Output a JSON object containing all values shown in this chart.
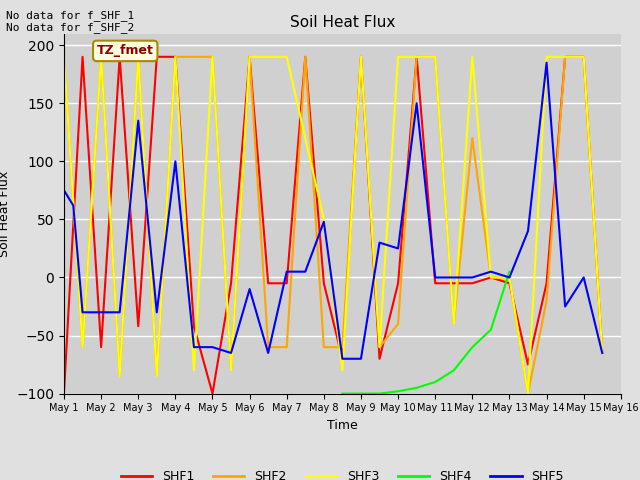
{
  "title": "Soil Heat Flux",
  "ylabel": "Soil Heat Flux",
  "xlabel": "Time",
  "annotation_text": "No data for f_SHF_1\nNo data for f_SHF_2",
  "legend_box_text": "TZ_fmet",
  "ylim": [
    -100,
    210
  ],
  "background_color": "#e0e0e0",
  "plot_bg_color": "#d0d0d0",
  "series": {
    "SHF1": {
      "color": "red",
      "x": [
        1.0,
        1.5,
        2.0,
        2.5,
        3.0,
        3.5,
        4.0,
        4.5,
        5.0,
        5.5,
        6.0,
        6.5,
        7.0,
        7.5,
        8.0,
        8.5,
        9.0,
        9.5,
        10.0,
        10.5,
        11.0,
        11.5,
        12.0,
        12.5,
        13.0,
        13.5,
        14.0,
        14.5,
        15.0,
        15.5
      ],
      "y": [
        -99,
        190,
        -60,
        190,
        -42,
        190,
        190,
        -42,
        -100,
        -5,
        190,
        -5,
        -5,
        190,
        -5,
        -70,
        190,
        -70,
        -5,
        190,
        -5,
        -5,
        -5,
        0,
        -5,
        -75,
        -5,
        190,
        190,
        -65
      ]
    },
    "SHF2": {
      "color": "orange",
      "x": [
        1.0,
        1.5,
        2.0,
        2.5,
        3.0,
        3.5,
        4.0,
        4.5,
        5.0,
        5.5,
        6.0,
        6.5,
        7.0,
        7.5,
        8.0,
        8.5,
        9.0,
        9.5,
        10.0,
        10.5,
        11.0,
        11.5,
        12.0,
        12.5,
        13.0,
        13.5,
        14.0,
        14.5,
        15.0,
        15.5
      ],
      "y": [
        190,
        -60,
        190,
        -85,
        190,
        -85,
        190,
        190,
        190,
        -80,
        190,
        -60,
        -60,
        190,
        -60,
        -60,
        190,
        -60,
        -40,
        190,
        190,
        -40,
        120,
        0,
        0,
        -100,
        -20,
        190,
        190,
        -65
      ]
    },
    "SHF3": {
      "color": "yellow",
      "x": [
        1.0,
        1.5,
        2.0,
        2.5,
        3.0,
        3.5,
        4.0,
        4.5,
        5.0,
        5.5,
        6.0,
        6.5,
        7.0,
        7.5,
        8.0,
        8.5,
        9.0,
        9.5,
        10.0,
        10.5,
        11.0,
        11.5,
        12.0,
        12.5,
        13.0,
        13.5,
        14.0,
        14.5,
        15.0,
        15.5
      ],
      "y": [
        190,
        -60,
        190,
        -85,
        190,
        -85,
        190,
        -80,
        190,
        -80,
        190,
        190,
        190,
        120,
        50,
        -80,
        190,
        -60,
        190,
        190,
        190,
        -40,
        190,
        0,
        0,
        -100,
        190,
        190,
        190,
        -65
      ]
    },
    "SHF4": {
      "color": "lime",
      "x": [
        8.5,
        9.0,
        9.5,
        10.0,
        10.5,
        11.0,
        11.5,
        12.0,
        12.5,
        13.0
      ],
      "y": [
        -100,
        -100,
        -100,
        -98,
        -95,
        -90,
        -80,
        -60,
        -45,
        5
      ]
    },
    "SHF5": {
      "color": "blue",
      "x": [
        1.0,
        1.25,
        1.5,
        2.0,
        2.5,
        3.0,
        3.5,
        4.0,
        4.5,
        5.0,
        5.5,
        6.0,
        6.5,
        7.0,
        7.5,
        8.0,
        8.5,
        9.0,
        9.5,
        10.0,
        10.5,
        11.0,
        11.5,
        12.0,
        12.5,
        13.0,
        13.5,
        14.0,
        14.5,
        15.0,
        15.5
      ],
      "y": [
        75,
        62,
        -30,
        -30,
        -30,
        135,
        -30,
        100,
        -60,
        -60,
        -65,
        -10,
        -65,
        5,
        5,
        48,
        -70,
        -70,
        30,
        25,
        150,
        0,
        0,
        0,
        5,
        0,
        40,
        185,
        -25,
        0,
        -65
      ]
    }
  },
  "xticks": [
    1,
    2,
    3,
    4,
    5,
    6,
    7,
    8,
    9,
    10,
    11,
    12,
    13,
    14,
    15,
    16
  ],
  "xtick_labels": [
    "May 1",
    "May 2",
    "May 3",
    "May 4",
    "May 5",
    "May 6",
    "May 7",
    "May 8",
    "May 9",
    "May 10",
    "May 11",
    "May 12",
    "May 13",
    "May 14",
    "May 15",
    "May 16"
  ],
  "yticks": [
    -100,
    -50,
    0,
    50,
    100,
    150,
    200
  ],
  "grid_color": "white",
  "legend_entries": [
    "SHF1",
    "SHF2",
    "SHF3",
    "SHF4",
    "SHF5"
  ],
  "legend_colors": [
    "red",
    "orange",
    "yellow",
    "lime",
    "blue"
  ]
}
